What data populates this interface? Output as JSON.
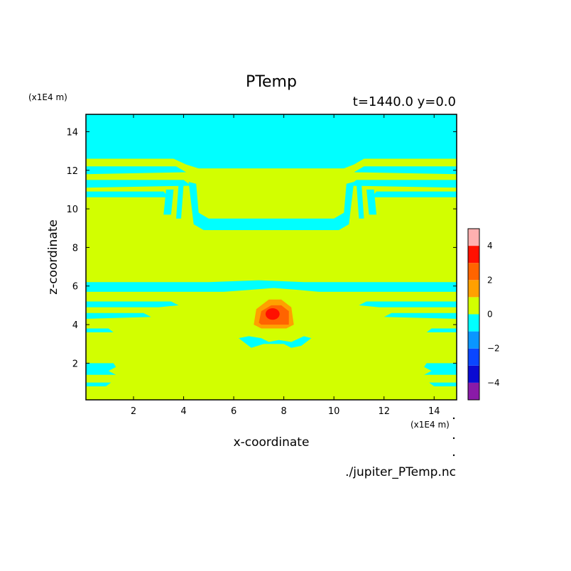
{
  "chart_data": {
    "type": "heatmap",
    "title": "PTemp",
    "subtitle": "t=1440.0 y=0.0",
    "xlabel": "x-coordinate",
    "ylabel": "z-coordinate",
    "x_unit": "(x1E4 m)",
    "y_unit": "(x1E4 m)",
    "source_file": "./jupiter_PTemp.nc",
    "xlim": [
      0.1,
      14.9
    ],
    "ylim": [
      0.1,
      14.9
    ],
    "x_ticks": [
      2,
      4,
      6,
      8,
      10,
      12,
      14
    ],
    "y_ticks": [
      2,
      4,
      6,
      8,
      10,
      12,
      14
    ],
    "colorbar": {
      "levels": [
        -5,
        -4,
        -3,
        -2,
        -1,
        0,
        1,
        2,
        3,
        4,
        5
      ],
      "colors": [
        "#8a1aa8",
        "#0a0ad2",
        "#0a46ff",
        "#0a96ff",
        "#00ffff",
        "#d2ff00",
        "#ffa000",
        "#ff6400",
        "#ff1000",
        "#ffb0b0"
      ],
      "tick_labels": [
        -4,
        -2,
        0,
        2,
        4
      ]
    },
    "background_level": "0 to 1",
    "regions": [
      {
        "level": "-1 to 0",
        "description": "upper layer",
        "x": [
          0.1,
          14.9
        ],
        "z": [
          12.1,
          14.9
        ]
      },
      {
        "level": "-1 to 0",
        "description": "central band",
        "x": [
          4.5,
          10.5
        ],
        "z": [
          8.9,
          9.5
        ]
      },
      {
        "level": "-1 to 0",
        "description": "mid layer",
        "x": [
          0.1,
          14.9
        ],
        "z": [
          5.7,
          6.2
        ]
      },
      {
        "level": "1 to 2",
        "description": "warm anomaly",
        "x": [
          6.8,
          8.4
        ],
        "z": [
          3.9,
          5.3
        ]
      },
      {
        "level": "2 to 3",
        "description": "warm anomaly",
        "x": [
          7.0,
          8.2
        ],
        "z": [
          4.0,
          5.0
        ]
      },
      {
        "level": "3 to 4",
        "description": "warm core",
        "x": [
          7.3,
          7.8
        ],
        "z": [
          4.3,
          4.8
        ]
      },
      {
        "level": "-1 to 0",
        "description": "cool patch below anomaly",
        "x": [
          6.2,
          9.1
        ],
        "z": [
          2.8,
          3.4
        ]
      }
    ]
  }
}
